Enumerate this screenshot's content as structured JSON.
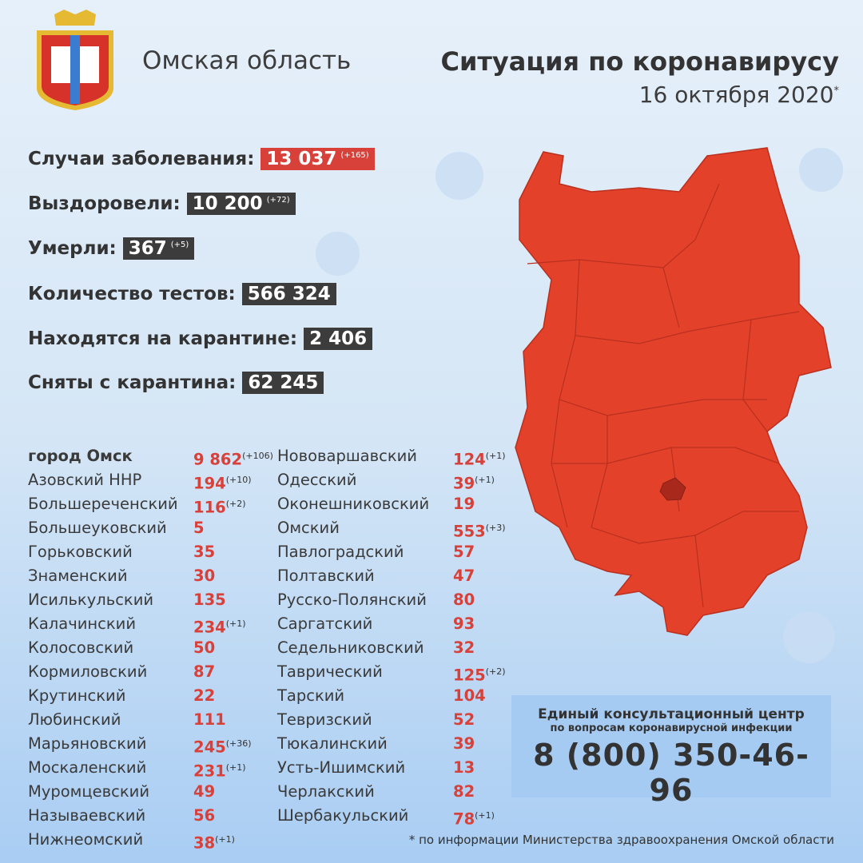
{
  "header": {
    "region": "Омская область",
    "title": "Ситуация по коронавирусу",
    "date": "16 октября 2020",
    "date_mark": "*"
  },
  "stats": [
    {
      "label": "Случаи заболевания:",
      "value": "13 037",
      "delta": "(+165)",
      "color": "#d8403a"
    },
    {
      "label": "Выздоровели:",
      "value": "10 200",
      "delta": "(+72)",
      "color": "#3c3c3c"
    },
    {
      "label": "Умерли:",
      "value": "367",
      "delta": "(+5)",
      "color": "#3c3c3c"
    },
    {
      "label": "Количество тестов:",
      "value": "566 324",
      "delta": "",
      "color": "#3c3c3c"
    },
    {
      "label": "Находятся на карантине:",
      "value": "2 406",
      "delta": "",
      "color": "#3c3c3c"
    },
    {
      "label": "Сняты с карантина:",
      "value": "62 245",
      "delta": "",
      "color": "#3c3c3c"
    }
  ],
  "districts_left": [
    {
      "name": "город Омск",
      "value": "9 862",
      "delta": "(+106)"
    },
    {
      "name": "Азовский ННР",
      "value": "194",
      "delta": "(+10)"
    },
    {
      "name": "Большереченский",
      "value": "116",
      "delta": "(+2)"
    },
    {
      "name": "Большеуковский",
      "value": "5",
      "delta": ""
    },
    {
      "name": "Горьковский",
      "value": "35",
      "delta": ""
    },
    {
      "name": "Знаменский",
      "value": "30",
      "delta": ""
    },
    {
      "name": "Исилькульский",
      "value": "135",
      "delta": ""
    },
    {
      "name": "Калачинский",
      "value": "234",
      "delta": "(+1)"
    },
    {
      "name": "Колосовский",
      "value": "50",
      "delta": ""
    },
    {
      "name": "Кормиловский",
      "value": "87",
      "delta": ""
    },
    {
      "name": "Крутинский",
      "value": "22",
      "delta": ""
    },
    {
      "name": "Любинский",
      "value": "111",
      "delta": ""
    },
    {
      "name": "Марьяновский",
      "value": "245",
      "delta": "(+36)"
    },
    {
      "name": "Москаленский",
      "value": "231",
      "delta": "(+1)"
    },
    {
      "name": "Муромцевский",
      "value": "49",
      "delta": ""
    },
    {
      "name": "Называевский",
      "value": "56",
      "delta": ""
    },
    {
      "name": "Нижнеомский",
      "value": "38",
      "delta": "(+1)"
    }
  ],
  "districts_right": [
    {
      "name": "Нововаршавский",
      "value": "124",
      "delta": "(+1)"
    },
    {
      "name": "Одесский",
      "value": "39",
      "delta": "(+1)"
    },
    {
      "name": "Оконешниковский",
      "value": "19",
      "delta": ""
    },
    {
      "name": "Омский",
      "value": "553",
      "delta": "(+3)"
    },
    {
      "name": "Павлоградский",
      "value": "57",
      "delta": ""
    },
    {
      "name": "Полтавский",
      "value": "47",
      "delta": ""
    },
    {
      "name": "Русско-Полянский",
      "value": "80",
      "delta": ""
    },
    {
      "name": "Саргатский",
      "value": "93",
      "delta": ""
    },
    {
      "name": "Седельниковский",
      "value": "32",
      "delta": ""
    },
    {
      "name": "Таврический",
      "value": "125",
      "delta": "(+2)"
    },
    {
      "name": "Тарский",
      "value": "104",
      "delta": ""
    },
    {
      "name": "Тевризский",
      "value": "52",
      "delta": ""
    },
    {
      "name": "Тюкалинский",
      "value": "39",
      "delta": ""
    },
    {
      "name": "Усть-Ишимский",
      "value": "13",
      "delta": ""
    },
    {
      "name": "Черлакский",
      "value": "82",
      "delta": ""
    },
    {
      "name": "Шербакульский",
      "value": "78",
      "delta": "(+1)"
    }
  ],
  "hotline": {
    "title": "Единый консультационный центр",
    "subtitle": "по вопросам коронавирусной инфекции",
    "phone": "8 (800) 350-46-96"
  },
  "footnote": "* по информации Министерства здравоохранения Омской области",
  "map": {
    "fill": "#e4412b",
    "city_fill": "#a8281c"
  }
}
